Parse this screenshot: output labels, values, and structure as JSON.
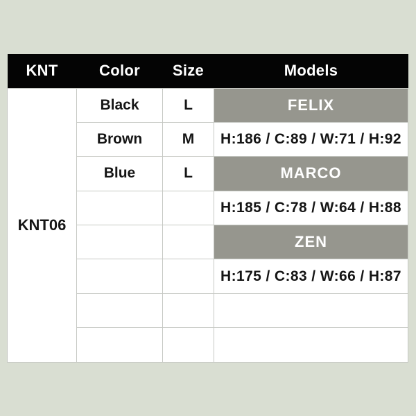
{
  "page": {
    "background_color": "#d9ded2"
  },
  "table": {
    "header": {
      "bg_color": "#040404",
      "text_color": "#ffffff",
      "columns": [
        "KNT",
        "Color",
        "Size",
        "Models"
      ]
    },
    "product_code": "KNT06",
    "banner_bg_color": "#96968e",
    "rows": [
      {
        "color": "Black",
        "size": "L",
        "model": "FELIX",
        "model_type": "banner"
      },
      {
        "color": "Brown",
        "size": "M",
        "model": "H:186 / C:89 / W:71 / H:92",
        "model_type": "measurements"
      },
      {
        "color": "Blue",
        "size": "L",
        "model": "MARCO",
        "model_type": "banner"
      },
      {
        "color": "",
        "size": "",
        "model": "H:185 / C:78 / W:64 / H:88",
        "model_type": "measurements"
      },
      {
        "color": "",
        "size": "",
        "model": "ZEN",
        "model_type": "banner"
      },
      {
        "color": "",
        "size": "",
        "model": "H:175 / C:83 / W:66 / H:87",
        "model_type": "measurements"
      },
      {
        "color": "",
        "size": "",
        "model": "",
        "model_type": "empty"
      },
      {
        "color": "",
        "size": "",
        "model": "",
        "model_type": "empty"
      }
    ]
  }
}
